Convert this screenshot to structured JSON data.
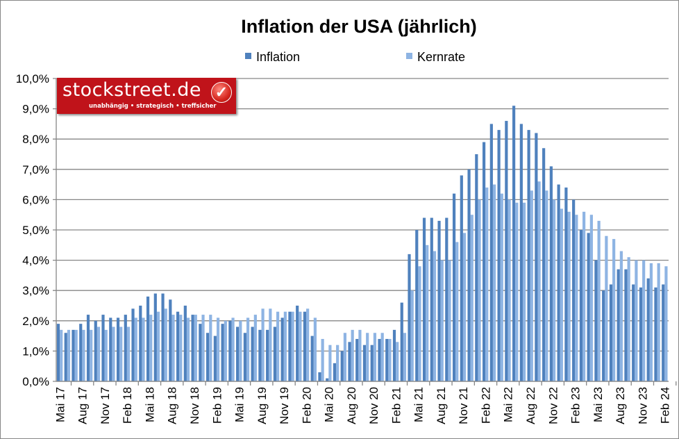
{
  "chart_data": {
    "type": "bar",
    "title": "Inflation der USA (jährlich)",
    "legend_position": "top",
    "ylim": [
      0,
      10
    ],
    "yticks": [
      "0,0%",
      "1,0%",
      "2,0%",
      "3,0%",
      "4,0%",
      "5,0%",
      "6,0%",
      "7,0%",
      "8,0%",
      "9,0%",
      "10,0%"
    ],
    "grid": true,
    "xtick_labels": [
      "Mai 17",
      "Aug 17",
      "Nov 17",
      "Feb 18",
      "Mai 18",
      "Aug 18",
      "Nov 18",
      "Feb 19",
      "Mai 19",
      "Aug 19",
      "Nov 19",
      "Feb 20",
      "Mai 20",
      "Aug 20",
      "Nov 20",
      "Feb 21",
      "Mai 21",
      "Aug 21",
      "Nov 21",
      "Feb 22",
      "Mai 22",
      "Aug 22",
      "Nov 22",
      "Feb 23",
      "Mai 23",
      "Aug 23",
      "Nov 23",
      "Feb 24"
    ],
    "x_start": "2017-05",
    "x_end": "2024-02",
    "series": [
      {
        "name": "Inflation",
        "color": "#4f81bd",
        "values": [
          1.9,
          1.6,
          1.7,
          1.9,
          2.2,
          2.0,
          2.2,
          2.1,
          2.1,
          2.2,
          2.4,
          2.5,
          2.8,
          2.9,
          2.9,
          2.7,
          2.3,
          2.5,
          2.2,
          1.9,
          1.6,
          1.5,
          1.9,
          2.0,
          1.8,
          1.6,
          1.8,
          1.7,
          1.7,
          1.8,
          2.1,
          2.3,
          2.5,
          2.3,
          1.5,
          0.3,
          0.1,
          0.6,
          1.0,
          1.3,
          1.4,
          1.2,
          1.2,
          1.4,
          1.4,
          1.7,
          2.6,
          4.2,
          5.0,
          5.4,
          5.4,
          5.3,
          5.4,
          6.2,
          6.8,
          7.0,
          7.5,
          7.9,
          8.5,
          8.3,
          8.6,
          9.1,
          8.5,
          8.3,
          8.2,
          7.7,
          7.1,
          6.5,
          6.4,
          6.0,
          5.0,
          4.9,
          4.0,
          3.0,
          3.2,
          3.7,
          3.7,
          3.2,
          3.1,
          3.4,
          3.1,
          3.2
        ]
      },
      {
        "name": "Kernrate",
        "color": "#8eb4e3",
        "values": [
          1.7,
          1.7,
          1.7,
          1.7,
          1.7,
          1.8,
          1.7,
          1.8,
          1.8,
          1.8,
          2.1,
          2.1,
          2.2,
          2.3,
          2.4,
          2.2,
          2.2,
          2.1,
          2.2,
          2.2,
          2.2,
          2.1,
          2.0,
          2.1,
          2.0,
          2.1,
          2.2,
          2.4,
          2.4,
          2.3,
          2.3,
          2.3,
          2.3,
          2.4,
          2.1,
          1.4,
          1.2,
          1.2,
          1.6,
          1.7,
          1.7,
          1.6,
          1.6,
          1.6,
          1.4,
          1.3,
          1.6,
          3.0,
          3.8,
          4.5,
          4.3,
          4.0,
          4.0,
          4.6,
          4.9,
          5.5,
          6.0,
          6.4,
          6.5,
          6.2,
          6.0,
          5.9,
          5.9,
          6.3,
          6.6,
          6.3,
          6.0,
          5.7,
          5.6,
          5.5,
          5.6,
          5.5,
          5.3,
          4.8,
          4.7,
          4.3,
          4.1,
          4.0,
          4.0,
          3.9,
          3.9,
          3.8
        ]
      }
    ]
  },
  "logo": {
    "name": "stockstreet.de",
    "tagline": "unabhängig • strategisch • treffsicher"
  }
}
